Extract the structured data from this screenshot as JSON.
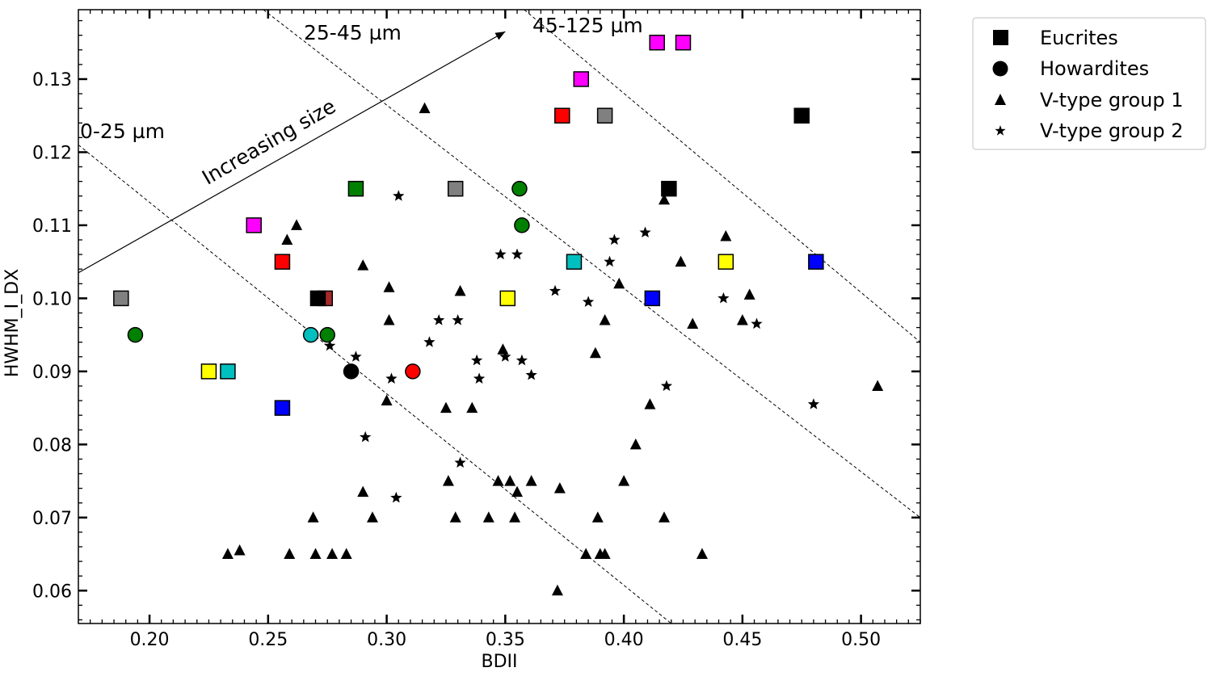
{
  "chart_data": {
    "type": "scatter",
    "xlabel": "BDII",
    "ylabel": "HWHM_I_DX",
    "xlim": [
      0.17,
      0.525
    ],
    "ylim": [
      0.0555,
      0.1395
    ],
    "xticks": [
      "0.20",
      "0.25",
      "0.30",
      "0.35",
      "0.40",
      "0.45",
      "0.50"
    ],
    "yticks": [
      "0.06",
      "0.07",
      "0.08",
      "0.09",
      "0.10",
      "0.11",
      "0.12",
      "0.13"
    ],
    "legend_position": "outside-right-top",
    "legend": [
      {
        "label": "Eucrites",
        "marker": "square"
      },
      {
        "label": "Howardites",
        "marker": "circle"
      },
      {
        "label": "V-type group 1",
        "marker": "triangle"
      },
      {
        "label": "V-type group 2",
        "marker": "star"
      }
    ],
    "annotations": {
      "arrow_label": "Increasing size",
      "regions": [
        "0-25 µm",
        "25-45 µm",
        "45-125 µm"
      ]
    },
    "reference_lines": [
      {
        "from": [
          0.17,
          0.121
        ],
        "to": [
          0.42,
          0.0555
        ]
      },
      {
        "from": [
          0.248,
          0.1395
        ],
        "to": [
          0.525,
          0.07
        ]
      },
      {
        "from": [
          0.358,
          0.1395
        ],
        "to": [
          0.525,
          0.094
        ]
      }
    ],
    "arrow": {
      "from": [
        0.17,
        0.1035
      ],
      "to": [
        0.35,
        0.1365
      ]
    },
    "series": [
      {
        "name": "Eucrites",
        "marker": "square",
        "points": [
          {
            "x": 0.188,
            "y": 0.1,
            "color": "#808080"
          },
          {
            "x": 0.225,
            "y": 0.09,
            "color": "#ffff00"
          },
          {
            "x": 0.233,
            "y": 0.09,
            "color": "#00bfbf"
          },
          {
            "x": 0.244,
            "y": 0.11,
            "color": "#ff00ff"
          },
          {
            "x": 0.256,
            "y": 0.105,
            "color": "#ff0000"
          },
          {
            "x": 0.256,
            "y": 0.085,
            "color": "#0000ff"
          },
          {
            "x": 0.274,
            "y": 0.1,
            "color": "#a52a2a"
          },
          {
            "x": 0.271,
            "y": 0.1,
            "color": "#000000"
          },
          {
            "x": 0.287,
            "y": 0.115,
            "color": "#008000"
          },
          {
            "x": 0.329,
            "y": 0.115,
            "color": "#808080"
          },
          {
            "x": 0.351,
            "y": 0.1,
            "color": "#ffff00"
          },
          {
            "x": 0.374,
            "y": 0.125,
            "color": "#ff0000"
          },
          {
            "x": 0.379,
            "y": 0.105,
            "color": "#00bfbf"
          },
          {
            "x": 0.382,
            "y": 0.13,
            "color": "#ff00ff"
          },
          {
            "x": 0.392,
            "y": 0.125,
            "color": "#808080"
          },
          {
            "x": 0.412,
            "y": 0.1,
            "color": "#0000ff"
          },
          {
            "x": 0.414,
            "y": 0.135,
            "color": "#ff00ff"
          },
          {
            "x": 0.419,
            "y": 0.115,
            "color": "#000000"
          },
          {
            "x": 0.425,
            "y": 0.135,
            "color": "#ff00ff"
          },
          {
            "x": 0.443,
            "y": 0.105,
            "color": "#ffff00"
          },
          {
            "x": 0.475,
            "y": 0.125,
            "color": "#000000"
          },
          {
            "x": 0.481,
            "y": 0.105,
            "color": "#0000ff"
          }
        ]
      },
      {
        "name": "Howardites",
        "marker": "circle",
        "points": [
          {
            "x": 0.194,
            "y": 0.095,
            "color": "#008000"
          },
          {
            "x": 0.268,
            "y": 0.095,
            "color": "#00bfbf"
          },
          {
            "x": 0.275,
            "y": 0.095,
            "color": "#008000"
          },
          {
            "x": 0.285,
            "y": 0.09,
            "color": "#000000"
          },
          {
            "x": 0.311,
            "y": 0.09,
            "color": "#ff0000"
          },
          {
            "x": 0.356,
            "y": 0.115,
            "color": "#008000"
          },
          {
            "x": 0.357,
            "y": 0.11,
            "color": "#008000"
          }
        ]
      },
      {
        "name": "V-type group 1",
        "marker": "triangle",
        "points": [
          {
            "x": 0.233,
            "y": 0.065
          },
          {
            "x": 0.238,
            "y": 0.0655
          },
          {
            "x": 0.259,
            "y": 0.065
          },
          {
            "x": 0.27,
            "y": 0.065
          },
          {
            "x": 0.277,
            "y": 0.065
          },
          {
            "x": 0.283,
            "y": 0.065
          },
          {
            "x": 0.269,
            "y": 0.07
          },
          {
            "x": 0.29,
            "y": 0.0735
          },
          {
            "x": 0.294,
            "y": 0.07
          },
          {
            "x": 0.258,
            "y": 0.108
          },
          {
            "x": 0.262,
            "y": 0.11
          },
          {
            "x": 0.29,
            "y": 0.1045
          },
          {
            "x": 0.301,
            "y": 0.1015
          },
          {
            "x": 0.301,
            "y": 0.097
          },
          {
            "x": 0.3,
            "y": 0.086
          },
          {
            "x": 0.316,
            "y": 0.126
          },
          {
            "x": 0.331,
            "y": 0.101
          },
          {
            "x": 0.325,
            "y": 0.085
          },
          {
            "x": 0.336,
            "y": 0.085
          },
          {
            "x": 0.326,
            "y": 0.075
          },
          {
            "x": 0.329,
            "y": 0.07
          },
          {
            "x": 0.343,
            "y": 0.07
          },
          {
            "x": 0.347,
            "y": 0.075
          },
          {
            "x": 0.349,
            "y": 0.093
          },
          {
            "x": 0.352,
            "y": 0.075
          },
          {
            "x": 0.355,
            "y": 0.0735
          },
          {
            "x": 0.354,
            "y": 0.07
          },
          {
            "x": 0.361,
            "y": 0.075
          },
          {
            "x": 0.372,
            "y": 0.06
          },
          {
            "x": 0.373,
            "y": 0.074
          },
          {
            "x": 0.384,
            "y": 0.065
          },
          {
            "x": 0.388,
            "y": 0.0925
          },
          {
            "x": 0.389,
            "y": 0.07
          },
          {
            "x": 0.39,
            "y": 0.065
          },
          {
            "x": 0.392,
            "y": 0.065
          },
          {
            "x": 0.392,
            "y": 0.097
          },
          {
            "x": 0.398,
            "y": 0.102
          },
          {
            "x": 0.4,
            "y": 0.075
          },
          {
            "x": 0.405,
            "y": 0.08
          },
          {
            "x": 0.411,
            "y": 0.0855
          },
          {
            "x": 0.417,
            "y": 0.1135
          },
          {
            "x": 0.417,
            "y": 0.07
          },
          {
            "x": 0.424,
            "y": 0.105
          },
          {
            "x": 0.429,
            "y": 0.0965
          },
          {
            "x": 0.433,
            "y": 0.065
          },
          {
            "x": 0.443,
            "y": 0.1085
          },
          {
            "x": 0.45,
            "y": 0.097
          },
          {
            "x": 0.453,
            "y": 0.1005
          },
          {
            "x": 0.507,
            "y": 0.088
          }
        ]
      },
      {
        "name": "V-type group 2",
        "marker": "star",
        "points": [
          {
            "x": 0.276,
            "y": 0.0935
          },
          {
            "x": 0.287,
            "y": 0.092
          },
          {
            "x": 0.291,
            "y": 0.081
          },
          {
            "x": 0.302,
            "y": 0.089
          },
          {
            "x": 0.305,
            "y": 0.114
          },
          {
            "x": 0.304,
            "y": 0.0727
          },
          {
            "x": 0.318,
            "y": 0.094
          },
          {
            "x": 0.322,
            "y": 0.097
          },
          {
            "x": 0.33,
            "y": 0.097
          },
          {
            "x": 0.331,
            "y": 0.0775
          },
          {
            "x": 0.338,
            "y": 0.0915
          },
          {
            "x": 0.339,
            "y": 0.089
          },
          {
            "x": 0.348,
            "y": 0.106
          },
          {
            "x": 0.35,
            "y": 0.092
          },
          {
            "x": 0.355,
            "y": 0.106
          },
          {
            "x": 0.357,
            "y": 0.0915
          },
          {
            "x": 0.361,
            "y": 0.0895
          },
          {
            "x": 0.371,
            "y": 0.101
          },
          {
            "x": 0.385,
            "y": 0.0995
          },
          {
            "x": 0.394,
            "y": 0.105
          },
          {
            "x": 0.396,
            "y": 0.108
          },
          {
            "x": 0.409,
            "y": 0.109
          },
          {
            "x": 0.418,
            "y": 0.088
          },
          {
            "x": 0.442,
            "y": 0.1
          },
          {
            "x": 0.456,
            "y": 0.0965
          },
          {
            "x": 0.48,
            "y": 0.0855
          }
        ]
      }
    ]
  }
}
